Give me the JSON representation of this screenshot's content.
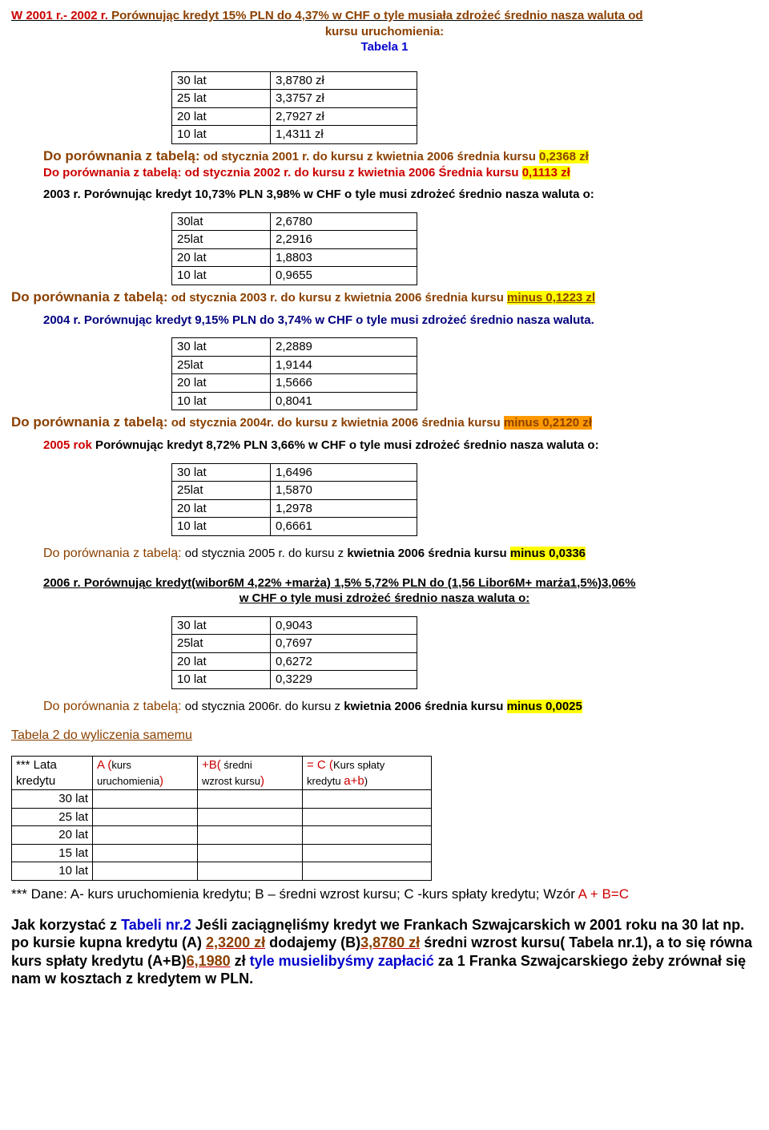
{
  "header": {
    "line1_prefix": "W 2001 r.- 2002 r.",
    "line1_rest": " Porównując kredyt 15% PLN do 4,37% w CHF o tyle musiała zdrożeć średnio nasza waluta od",
    "line2": "kursu uruchomienia:",
    "line3": "Tabela 1"
  },
  "t1": {
    "rows": [
      [
        "30 lat",
        "3,8780 zł"
      ],
      [
        "25 lat",
        "3,3757 zł"
      ],
      [
        "20 lat",
        "2,7927 zł"
      ],
      [
        "10 lat",
        "1,4311 zł"
      ]
    ]
  },
  "cmp1": {
    "a": "Do porównania z tabelą:",
    "b": " od stycznia 2001 r. do kursu z kwietnia 2006  średnia kursu ",
    "c": " 0,2368 zł",
    "d": "Do porównania z tabelą:  od stycznia 2002 r. do kursu z  kwietnia 2006  Średnia kursu ",
    "e": " 0,1113 zł"
  },
  "s2003": {
    "a": "2003 r.",
    "b": " Porównując kredyt 10,73% PLN 3,98% w CHF o tyle musi zdrożeć średnio nasza waluta o:"
  },
  "t2": {
    "rows": [
      [
        "30lat",
        "2,6780"
      ],
      [
        "25lat",
        "2,2916"
      ],
      [
        "20 lat",
        "1,8803"
      ],
      [
        "10 lat",
        "0,9655"
      ]
    ]
  },
  "cmp2": {
    "a": "Do porównania z tabelą:",
    "b": "  od stycznia 2003 r. do kursu z  kwietnia 2006  średnia kursu ",
    "c": " minus 0,1223 zl"
  },
  "s2004": {
    "a": "2004 r",
    "b": ". ",
    "c": "Porównując kredyt 9,15% PLN do 3,74% w CHF o tyle musi zdrożeć średnio nasza waluta."
  },
  "t3": {
    "rows": [
      [
        "30 lat",
        "2,2889"
      ],
      [
        "25lat",
        "1,9144"
      ],
      [
        "20 lat",
        "1,5666"
      ],
      [
        "10 lat",
        "0,8041"
      ]
    ]
  },
  "cmp3": {
    "a": "Do porównania z tabelą:",
    "b": "  od stycznia 2004r. do kursu z  kwietnia 2006  średnia kursu ",
    "c": "minus 0,2120 zł"
  },
  "s2005": {
    "a": "2005 rok",
    "b": " Porównując kredyt 8,72% PLN 3,66% w CHF o tyle musi zdrożeć średnio nasza waluta o:"
  },
  "t4": {
    "rows": [
      [
        "30 lat",
        "1,6496"
      ],
      [
        "25lat",
        "1,5870"
      ],
      [
        "20 lat",
        "1,2978"
      ],
      [
        "10 lat",
        "0,6661"
      ]
    ]
  },
  "cmp4": {
    "a": "Do porównania z tabelą:",
    "b": "  od stycznia 2005 r. do kursu z ",
    "c": "kwietnia 2006  średnia kursu ",
    "d": "minus 0,0336"
  },
  "s2006": {
    "a": "2006 r.",
    "b": " Porównując kredyt(wibor6M 4,22% +marża) 1,5% 5,72% PLN do (1,56 Libor6M+ marża1,5%)3,06%",
    "b2": "w CHF o tyle musi zdrożeć średnio nasza waluta o:"
  },
  "t5": {
    "rows": [
      [
        "30 lat",
        "0,9043"
      ],
      [
        "25lat",
        "0,7697"
      ],
      [
        "20 lat",
        "0,6272"
      ],
      [
        "10 lat",
        "0,3229"
      ]
    ]
  },
  "cmp5": {
    "a": "Do porównania z tabelą:",
    "b": " od stycznia 2006r. do kursu z ",
    "c": "kwietnia 2006  średnia kursu ",
    "d": "minus 0,0025"
  },
  "tabela2": {
    "title": "Tabela 2 do wyliczenia samemu",
    "h1a": "*** Lata",
    "h1b": "kredytu",
    "h2a": "A (",
    "h2b": "kurs",
    "h2c": "uruchomienia",
    "h2d": ")",
    "h3a": "+B(",
    "h3b": " średni",
    "h3c": "wzrost kursu",
    "h3d": ")",
    "h4a": "= C (",
    "h4b": "Kurs spłaty",
    "h4c": "kredytu ",
    "h4d": "a+b",
    "h4e": ")",
    "rows": [
      "30 lat",
      "25 lat",
      "20 lat",
      "15 lat",
      "10 lat"
    ]
  },
  "footer": {
    "l1a": "*** ",
    "l1b": "Dane: A- kurs uruchomienia kredytu; B – średni wzrost kursu; C -kurs spłaty kredytu; ",
    "l1c": "Wzór ",
    "l1d": "A + B=C",
    "p2a": " Jak korzystać z ",
    "p2b": "Tabeli nr.2",
    "p2c": " Jeśli zaciągnęliśmy kredyt we Frankach Szwajcarskich w 2001 roku na 30 lat np. po kursie kupna kredytu (A) ",
    "p2d": "2,3200 zł",
    "p2e": " dodajemy (B)",
    "p2f": "3,8780 zł",
    "p2g": " średni wzrost kursu( Tabela nr.1), a to się równa kurs spłaty kredytu (A+B)",
    "p2h": "6,1980",
    "p2i": " zł ",
    "p2j": "tyle musielibyśmy zapłacić",
    "p2k": " za 1 Franka Szwajcarskiego żeby zrównał się nam w kosztach z kredytem w PLN."
  }
}
